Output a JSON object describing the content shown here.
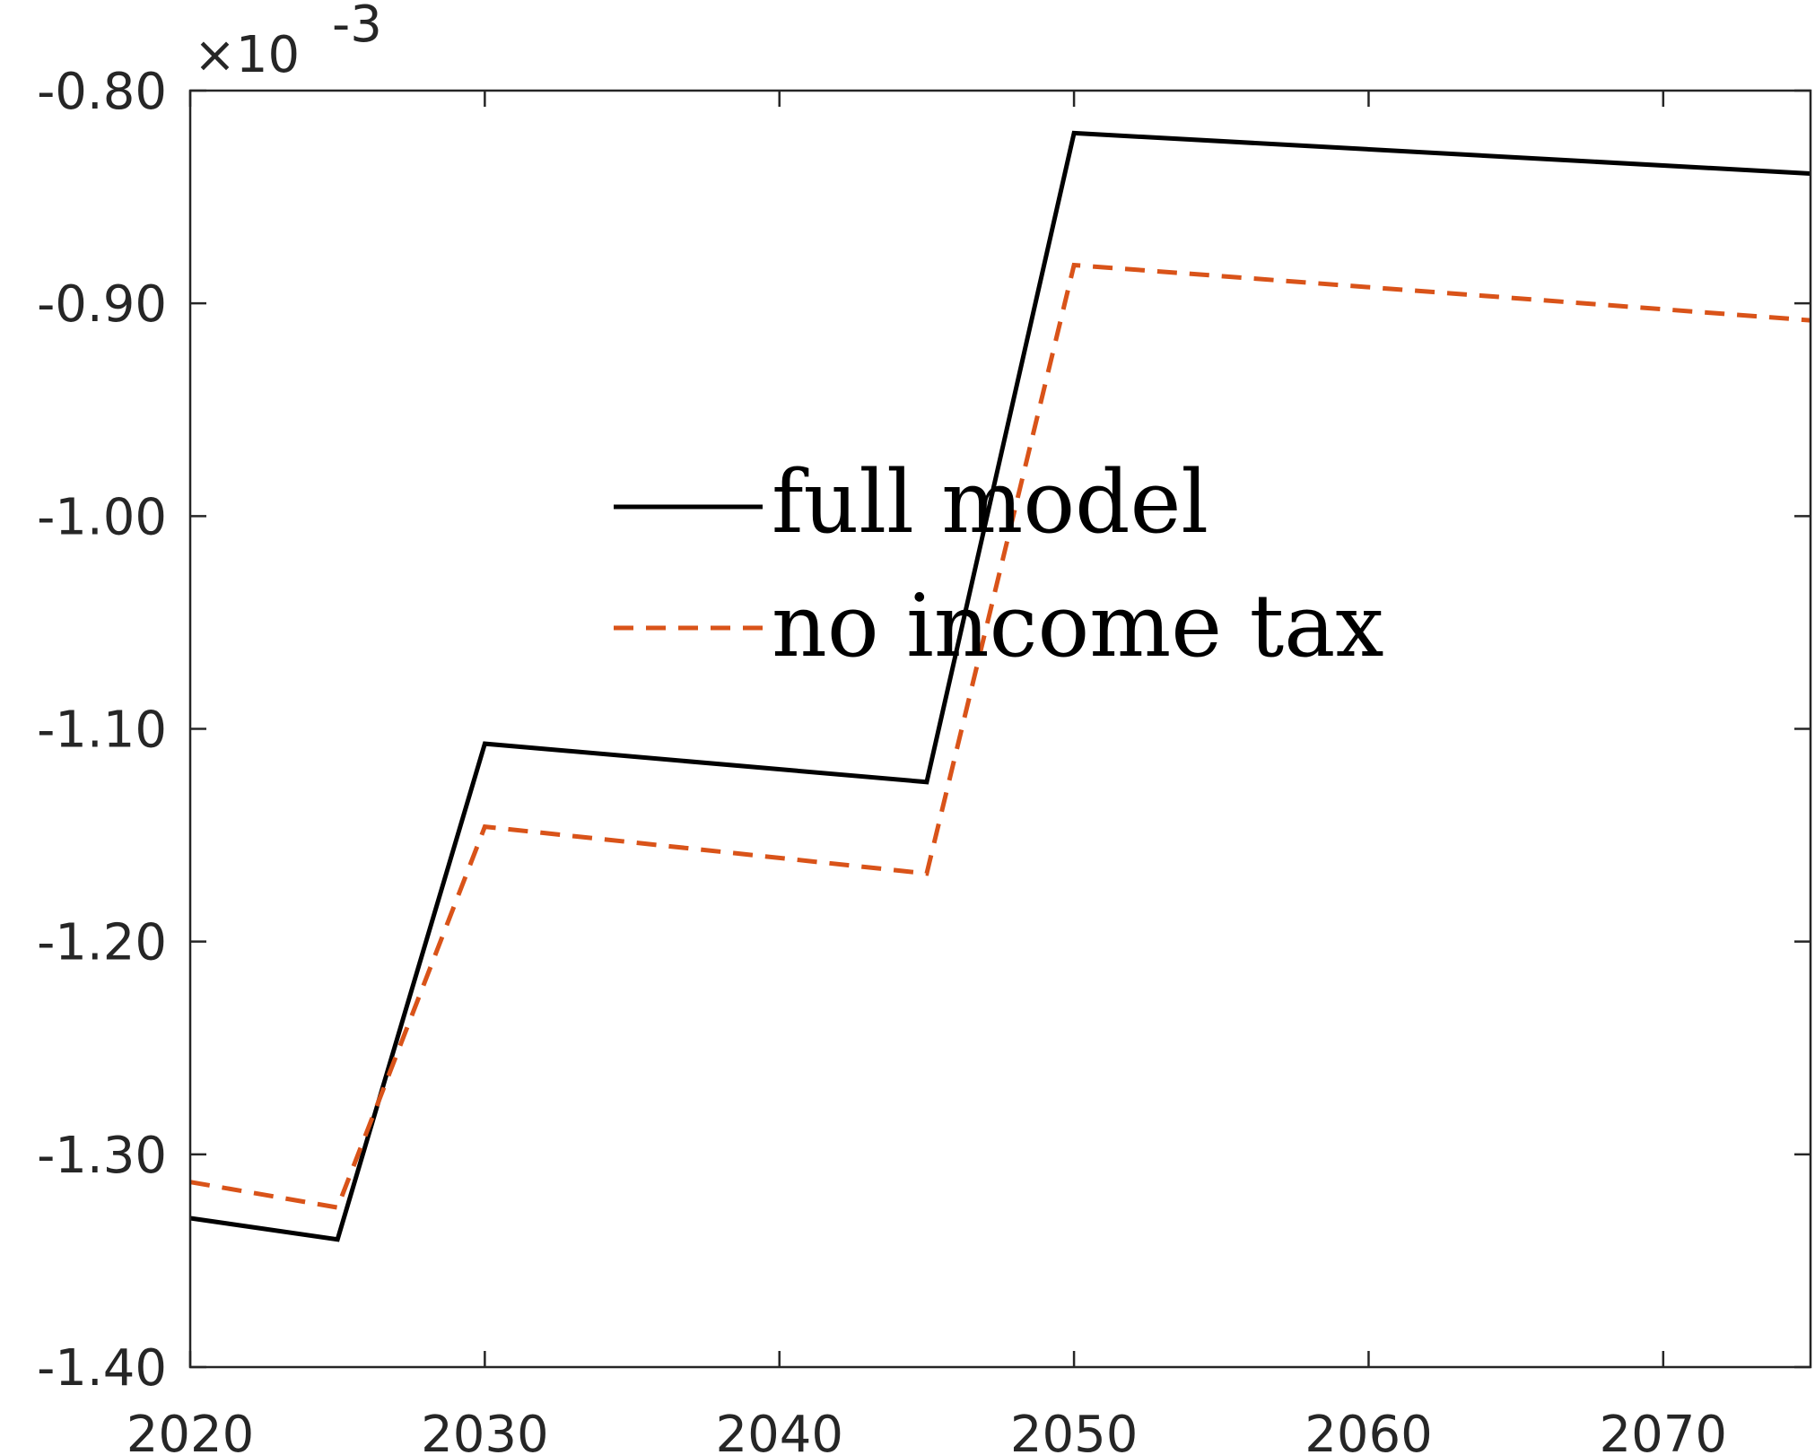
{
  "chart_data": {
    "type": "line",
    "x": [
      2020,
      2025,
      2030,
      2045,
      2050,
      2075
    ],
    "series": [
      {
        "name": "full model",
        "values": [
          -1.33,
          -1.34,
          -1.107,
          -1.125,
          -0.82,
          -0.839
        ],
        "color": "#000000",
        "style": "solid"
      },
      {
        "name": "no income tax",
        "values": [
          -1.313,
          -1.325,
          -1.146,
          -1.168,
          -0.882,
          -0.908
        ],
        "color": "#D95319",
        "style": "dashed"
      }
    ],
    "xlim": [
      2020,
      2075
    ],
    "ylim": [
      -1.4,
      -0.8
    ],
    "x_ticks": [
      2020,
      2030,
      2040,
      2050,
      2060,
      2070
    ],
    "x_tick_labels": [
      "2020",
      "2030",
      "2040",
      "2050",
      "2060",
      "2070"
    ],
    "y_ticks": [
      -0.8,
      -0.9,
      -1.0,
      -1.1,
      -1.2,
      -1.3,
      -1.4
    ],
    "y_tick_labels": [
      "-0.80",
      "-0.90",
      "-1.00",
      "-1.10",
      "-1.20",
      "-1.30",
      "-1.40"
    ],
    "y_exponent_prefix": "×10",
    "y_exponent": "-3",
    "title": "",
    "xlabel": "",
    "ylabel": "",
    "grid": false,
    "legend_position": "center"
  }
}
